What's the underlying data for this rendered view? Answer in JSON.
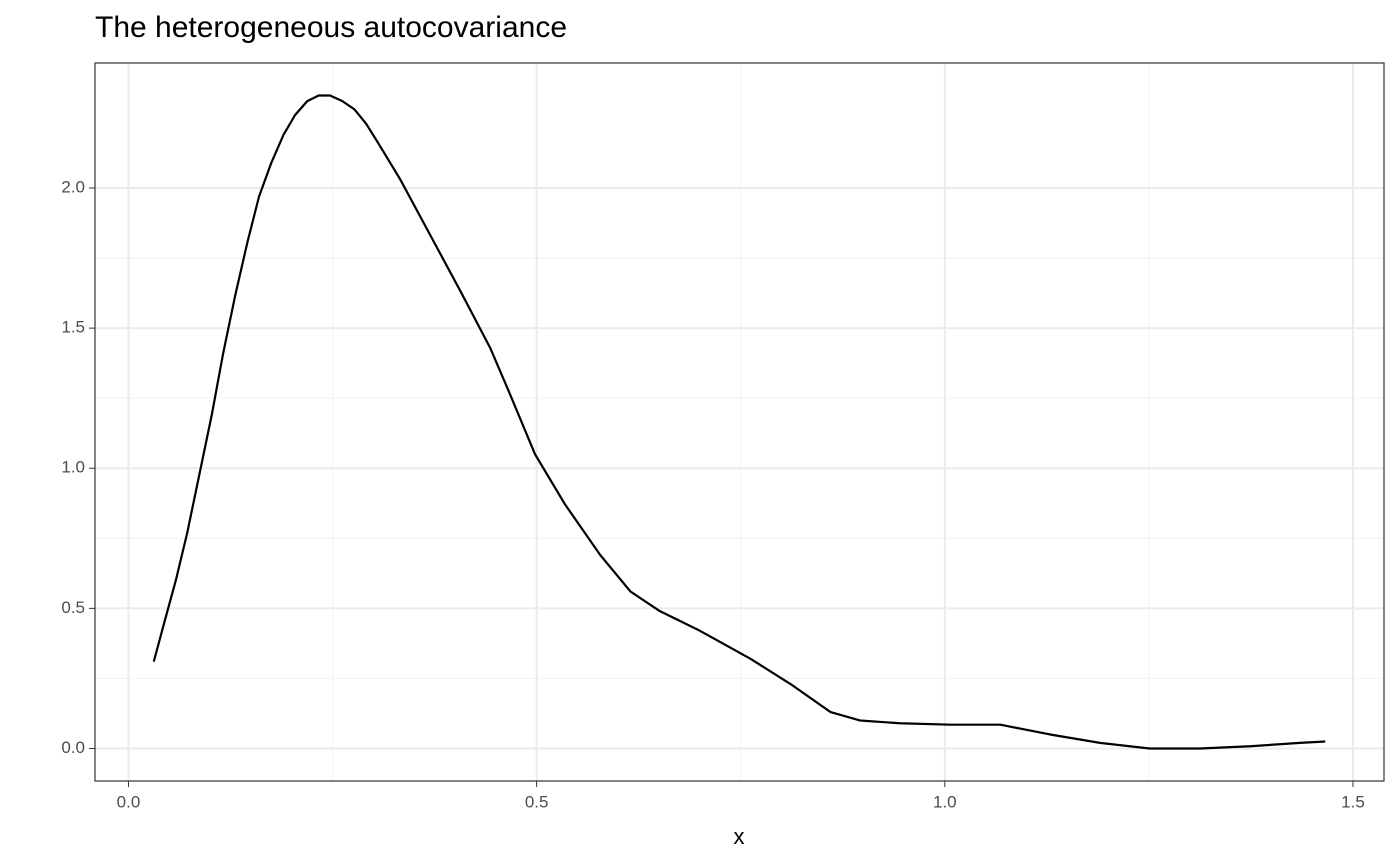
{
  "chart_data": {
    "type": "line",
    "title": "The heterogeneous autocovariance",
    "xlabel": "x",
    "x": [
      0.031,
      0.043,
      0.058,
      0.072,
      0.087,
      0.102,
      0.116,
      0.131,
      0.146,
      0.16,
      0.175,
      0.19,
      0.204,
      0.219,
      0.233,
      0.247,
      0.262,
      0.277,
      0.291,
      0.306,
      0.333,
      0.37,
      0.407,
      0.443,
      0.468,
      0.498,
      0.535,
      0.578,
      0.615,
      0.651,
      0.7,
      0.762,
      0.811,
      0.86,
      0.896,
      0.945,
      1.007,
      1.068,
      1.129,
      1.19,
      1.251,
      1.313,
      1.374,
      1.435,
      1.466
    ],
    "series": [
      {
        "color": "#000000",
        "values": [
          0.31,
          0.44,
          0.6,
          0.77,
          0.98,
          1.19,
          1.41,
          1.62,
          1.81,
          1.97,
          2.09,
          2.19,
          2.26,
          2.31,
          2.33,
          2.33,
          2.31,
          2.28,
          2.23,
          2.16,
          2.03,
          1.83,
          1.63,
          1.43,
          1.26,
          1.05,
          0.87,
          0.69,
          0.56,
          0.49,
          0.42,
          0.32,
          0.23,
          0.13,
          0.1,
          0.09,
          0.085,
          0.085,
          0.05,
          0.02,
          0.0,
          0.0,
          0.008,
          0.02,
          0.025
        ]
      }
    ],
    "xlim": [
      -0.041,
      1.538
    ],
    "ylim": [
      -0.116,
      2.446
    ],
    "xticks": [
      {
        "value": 0,
        "label": "0.0"
      },
      {
        "value": 0.5,
        "label": "0.5"
      },
      {
        "value": 1,
        "label": "1.0"
      },
      {
        "value": 1.5,
        "label": "1.5"
      }
    ],
    "yticks": [
      {
        "value": 0,
        "label": "0.0"
      },
      {
        "value": 0.5,
        "label": "0.5"
      },
      {
        "value": 1,
        "label": "1.0"
      },
      {
        "value": 1.5,
        "label": "1.5"
      },
      {
        "value": 2,
        "label": "2.0"
      }
    ],
    "grid": true
  }
}
